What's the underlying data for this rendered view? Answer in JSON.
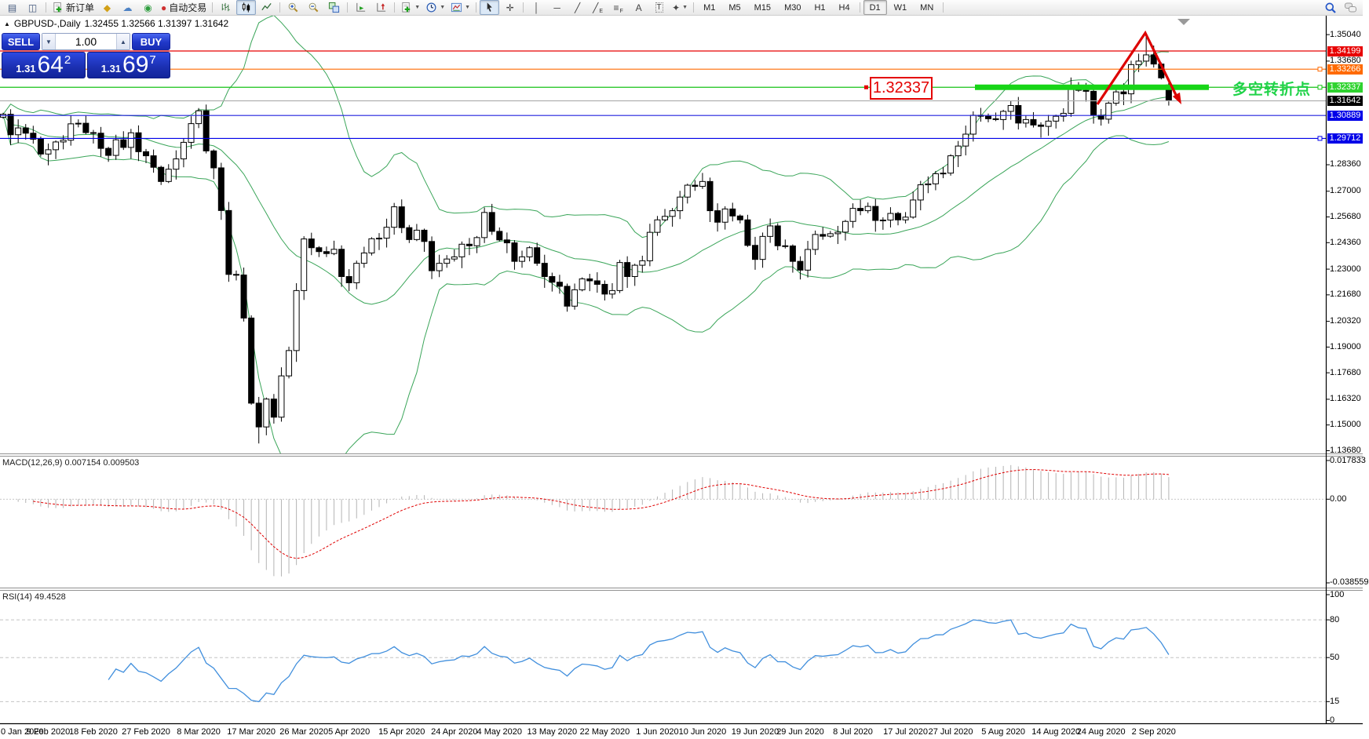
{
  "toolbar": {
    "items": [
      {
        "type": "btn",
        "name": "chart-window",
        "icon": "glyph",
        "glyph": "▤",
        "color": "#44597e"
      },
      {
        "type": "btn",
        "name": "tick-chart",
        "icon": "glyph",
        "glyph": "◫",
        "color": "#44597e"
      },
      {
        "type": "sep"
      },
      {
        "type": "btn",
        "name": "new-order",
        "icon": "svg",
        "svg": "page-plus",
        "label": "新订单"
      },
      {
        "type": "btn",
        "name": "cleaner",
        "icon": "glyph",
        "glyph": "◆",
        "color": "#d2a017"
      },
      {
        "type": "btn",
        "name": "publish",
        "icon": "glyph",
        "glyph": "☁",
        "color": "#4d82c4"
      },
      {
        "type": "btn",
        "name": "signals",
        "icon": "glyph",
        "glyph": "◉",
        "color": "#2f9e3f"
      },
      {
        "type": "btn",
        "name": "auto-trading",
        "icon": "glyph",
        "glyph": "●",
        "color": "#cf3030",
        "label": "自动交易"
      },
      {
        "type": "sep"
      },
      {
        "type": "btn",
        "name": "bar-chart",
        "icon": "svg",
        "svg": "bars"
      },
      {
        "type": "btn",
        "name": "candlestick-chart",
        "icon": "svg",
        "svg": "candles",
        "pressed": true
      },
      {
        "type": "btn",
        "name": "line-chart",
        "icon": "svg",
        "svg": "linechart"
      },
      {
        "type": "sep"
      },
      {
        "type": "btn",
        "name": "zoom-in",
        "icon": "svg",
        "svg": "zoom-in"
      },
      {
        "type": "btn",
        "name": "zoom-out",
        "icon": "svg",
        "svg": "zoom-out"
      },
      {
        "type": "btn",
        "name": "tile-windows",
        "icon": "svg",
        "svg": "tiles"
      },
      {
        "type": "sep"
      },
      {
        "type": "btn",
        "name": "auto-scroll",
        "icon": "svg",
        "svg": "auto-scroll"
      },
      {
        "type": "btn",
        "name": "chart-shift",
        "icon": "svg",
        "svg": "chart-shift"
      },
      {
        "type": "sep"
      },
      {
        "type": "btn",
        "name": "indicators",
        "icon": "svg",
        "svg": "page-plus",
        "caret": true
      },
      {
        "type": "btn",
        "name": "periods",
        "icon": "svg",
        "svg": "clock",
        "caret": true
      },
      {
        "type": "btn",
        "name": "templates",
        "icon": "svg",
        "svg": "template",
        "caret": true
      },
      {
        "type": "sep"
      },
      {
        "type": "btn",
        "name": "cursor",
        "icon": "svg",
        "svg": "cursor",
        "pressed": true
      },
      {
        "type": "btn",
        "name": "crosshair",
        "icon": "glyph",
        "glyph": "✛",
        "color": "#444"
      },
      {
        "type": "sep"
      },
      {
        "type": "btn",
        "name": "vertical-line",
        "icon": "glyph",
        "glyph": "│",
        "color": "#444"
      },
      {
        "type": "btn",
        "name": "horizontal-line",
        "icon": "glyph",
        "glyph": "─",
        "color": "#444"
      },
      {
        "type": "btn",
        "name": "trendline",
        "icon": "glyph",
        "glyph": "╱",
        "color": "#444"
      },
      {
        "type": "btn",
        "name": "equidistant-channel",
        "icon": "glyph",
        "glyph": "╱",
        "sub": "E",
        "color": "#444"
      },
      {
        "type": "btn",
        "name": "fibonacci-retracement",
        "icon": "glyph",
        "glyph": "≡",
        "sub": "F",
        "color": "#444"
      },
      {
        "type": "btn",
        "name": "text",
        "icon": "glyph",
        "glyph": "A",
        "color": "#444"
      },
      {
        "type": "btn",
        "name": "text-label",
        "icon": "glyph",
        "glyph": "T",
        "color": "#444",
        "boxed": true
      },
      {
        "type": "btn",
        "name": "arrows",
        "icon": "glyph",
        "glyph": "✦",
        "color": "#444",
        "caret": true
      },
      {
        "type": "sep"
      }
    ],
    "timeframes": [
      "M1",
      "M5",
      "M15",
      "M30",
      "H1",
      "H4",
      "D1",
      "W1",
      "MN"
    ],
    "active_timeframe": "D1",
    "right_icons": [
      {
        "name": "search",
        "svg": "search"
      },
      {
        "name": "chat",
        "svg": "chat"
      }
    ]
  },
  "chart": {
    "collapse_icon": "▲",
    "title": "GBPUSD-,Daily",
    "ohlc": "1.32455 1.32566 1.31397 1.31642"
  },
  "trade": {
    "sell_label": "SELL",
    "buy_label": "BUY",
    "volume": "1.00",
    "spin_down": "▼",
    "spin_up": "▲",
    "sell_small": "1.31",
    "sell_big": "64",
    "sell_sup": "2",
    "buy_small": "1.31",
    "buy_big": "69",
    "buy_sup": "7"
  },
  "macd": {
    "name": "MACD(12,26,9)",
    "values": "0.007154 0.009503",
    "ticks": [
      "0.017833",
      "0.00",
      "-0.038559"
    ]
  },
  "rsi": {
    "name": "RSI(14)",
    "value": "49.4528",
    "ticks": [
      100,
      80,
      50,
      15,
      0
    ],
    "dashed_levels": [
      80,
      50,
      15
    ]
  },
  "annotations": {
    "callout": "1.32337",
    "turning_point": "多空转折点"
  },
  "price_axis": {
    "ticks": [
      "1.35040",
      "1.33680",
      "1.28360",
      "1.27000",
      "1.25680",
      "1.24360",
      "1.23000",
      "1.21680",
      "1.20320",
      "1.19000",
      "1.17680",
      "1.16320",
      "1.15000",
      "1.13680"
    ],
    "badges": [
      {
        "value": "1.34199",
        "bg": "#e80000"
      },
      {
        "value": "1.33266",
        "bg": "#ff6a00"
      },
      {
        "value": "1.32337",
        "bg": "#2fd32f"
      },
      {
        "value": "1.31642",
        "bg": "#000000"
      },
      {
        "value": "1.30889",
        "bg": "#0000e8"
      },
      {
        "value": "1.29712",
        "bg": "#0000e8"
      }
    ]
  },
  "hlines": [
    {
      "price": 1.34199,
      "color": "#e80000",
      "handle": false
    },
    {
      "price": 1.33266,
      "color": "#ff6a00",
      "handle": true
    },
    {
      "price": 1.32337,
      "color": "#17c317",
      "handle": true,
      "thick": true
    },
    {
      "price": 1.31642,
      "color": "#b0b0b0",
      "handle": false
    },
    {
      "price": 1.30889,
      "color": "#2020dd",
      "handle": false
    },
    {
      "price": 1.29712,
      "color": "#0000e8",
      "handle": true
    }
  ],
  "date_axis": [
    [
      "0 Jan 2020",
      0
    ],
    [
      "9 Feb 2020",
      6
    ],
    [
      "18 Feb 2020",
      12
    ],
    [
      "27 Feb 2020",
      19
    ],
    [
      "8 Mar 2020",
      26
    ],
    [
      "17 Mar 2020",
      33
    ],
    [
      "26 Mar 2020",
      40
    ],
    [
      "5 Apr 2020",
      46
    ],
    [
      "15 Apr 2020",
      53
    ],
    [
      "24 Apr 2020",
      60
    ],
    [
      "4 May 2020",
      66
    ],
    [
      "13 May 2020",
      73
    ],
    [
      "22 May 2020",
      80
    ],
    [
      "1 Jun 2020",
      87
    ],
    [
      "10 Jun 2020",
      93
    ],
    [
      "19 Jun 2020",
      100
    ],
    [
      "29 Jun 2020",
      106
    ],
    [
      "8 Jul 2020",
      113
    ],
    [
      "17 Jul 2020",
      120
    ],
    [
      "27 Jul 2020",
      126
    ],
    [
      "5 Aug 2020",
      133
    ],
    [
      "14 Aug 2020",
      140
    ],
    [
      "24 Aug 2020",
      146
    ],
    [
      "2 Sep 2020",
      153
    ]
  ],
  "chart_data": {
    "type": "candlestick",
    "symbol": "GBPUSD",
    "timeframe": "Daily",
    "indicators": {
      "bollinger": "20,2",
      "macd": "12,26,9",
      "rsi": "14"
    },
    "price_range": [
      1.1368,
      1.361
    ],
    "first_open": 1.308,
    "closes": [
      1.3095,
      1.299,
      1.3025,
      1.2998,
      1.2967,
      1.2891,
      1.2913,
      1.2953,
      1.2962,
      1.3046,
      1.3049,
      1.3001,
      1.2998,
      1.292,
      1.2884,
      1.2964,
      1.2925,
      1.3,
      1.2903,
      1.2882,
      1.2823,
      1.275,
      1.2813,
      1.2866,
      1.2951,
      1.3047,
      1.3113,
      1.2907,
      1.282,
      1.2601,
      1.2273,
      1.227,
      1.2049,
      1.1612,
      1.149,
      1.1633,
      1.154,
      1.1752,
      1.1882,
      1.219,
      1.2455,
      1.241,
      1.239,
      1.238,
      1.2402,
      1.2262,
      1.223,
      1.233,
      1.2383,
      1.2456,
      1.2459,
      1.2515,
      1.262,
      1.2513,
      1.2452,
      1.25,
      1.2442,
      1.2292,
      1.233,
      1.2352,
      1.2363,
      1.2428,
      1.242,
      1.2462,
      1.2591,
      1.2494,
      1.245,
      1.2435,
      1.234,
      1.2363,
      1.241,
      1.233,
      1.2262,
      1.2233,
      1.2212,
      1.211,
      1.2194,
      1.225,
      1.224,
      1.2222,
      1.2172,
      1.219,
      1.2334,
      1.2262,
      1.232,
      1.2343,
      1.2489,
      1.2553,
      1.2571,
      1.26,
      1.267,
      1.2731,
      1.2725,
      1.275,
      1.26,
      1.2541,
      1.2609,
      1.2573,
      1.2553,
      1.2422,
      1.235,
      1.2468,
      1.2522,
      1.242,
      1.2419,
      1.234,
      1.2295,
      1.2401,
      1.2478,
      1.2469,
      1.2482,
      1.249,
      1.2545,
      1.2612,
      1.26,
      1.2622,
      1.255,
      1.2552,
      1.2586,
      1.2553,
      1.2567,
      1.2655,
      1.2733,
      1.2738,
      1.279,
      1.2793,
      1.2882,
      1.2932,
      1.2993,
      1.309,
      1.3085,
      1.3072,
      1.3068,
      1.311,
      1.314,
      1.305,
      1.3068,
      1.304,
      1.3033,
      1.306,
      1.3085,
      1.31,
      1.324,
      1.3218,
      1.3213,
      1.309,
      1.307,
      1.3152,
      1.321,
      1.32,
      1.335,
      1.3368,
      1.34,
      1.3353,
      1.3282,
      1.31642
    ],
    "overrides": {
      "34": {
        "l": 1.1405
      },
      "152": {
        "h": 1.3495
      },
      "153": {
        "h": 1.3448
      },
      "155": {
        "o": 1.32455,
        "h": 1.32566,
        "l": 1.31397,
        "c": 1.31642
      }
    },
    "arrow_annotation": [
      [
        1398,
        133
      ],
      [
        1459,
        42
      ],
      [
        1501,
        127
      ]
    ]
  }
}
